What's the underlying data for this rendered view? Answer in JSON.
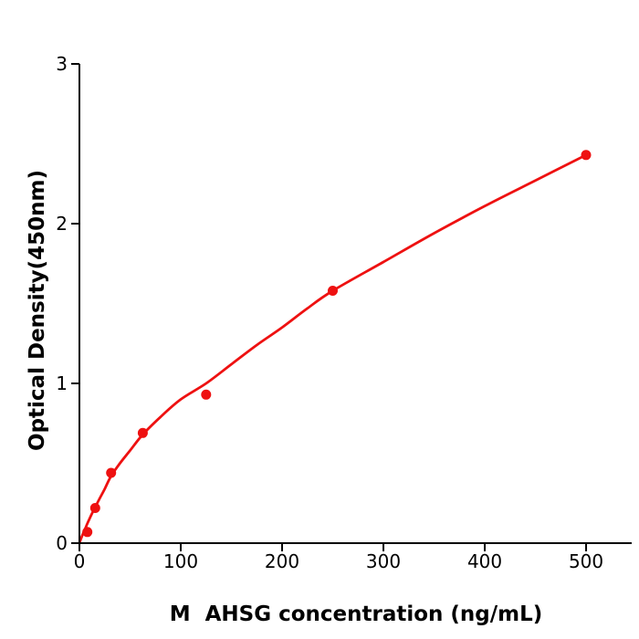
{
  "figure": {
    "background": "#ffffff",
    "axis_color": "#000000",
    "text_color": "#000000",
    "accent_red": "#ee1111"
  },
  "chart_data": {
    "type": "scatter",
    "title": "",
    "xlabel": "M  AHSG concentration (ng/mL)",
    "ylabel": "Optical Density(450nm)",
    "xlim": [
      0,
      545
    ],
    "ylim": [
      0,
      3
    ],
    "x_ticks": [
      0,
      100,
      200,
      300,
      400,
      500
    ],
    "y_ticks": [
      0,
      1,
      2,
      3
    ],
    "grid": false,
    "legend": null,
    "series": [
      {
        "name": "standard-points",
        "type": "scatter",
        "marker": "circle",
        "color": "#ee1111",
        "x": [
          7.8,
          15.6,
          31.25,
          62.5,
          125,
          250,
          500
        ],
        "y": [
          0.07,
          0.22,
          0.44,
          0.69,
          0.93,
          1.58,
          2.43
        ]
      },
      {
        "name": "fitted-curve",
        "type": "line",
        "color": "#ee1111",
        "x": [
          0,
          2,
          5,
          8,
          12,
          16,
          20,
          25,
          31.25,
          40,
          50,
          62.5,
          80,
          100,
          125,
          150,
          175,
          200,
          225,
          250,
          300,
          350,
          400,
          450,
          500
        ],
        "y": [
          0,
          0.035,
          0.08,
          0.125,
          0.18,
          0.23,
          0.28,
          0.34,
          0.42,
          0.5,
          0.58,
          0.68,
          0.79,
          0.9,
          1.0,
          1.12,
          1.24,
          1.35,
          1.47,
          1.58,
          1.76,
          1.94,
          2.11,
          2.27,
          2.43
        ]
      }
    ]
  }
}
